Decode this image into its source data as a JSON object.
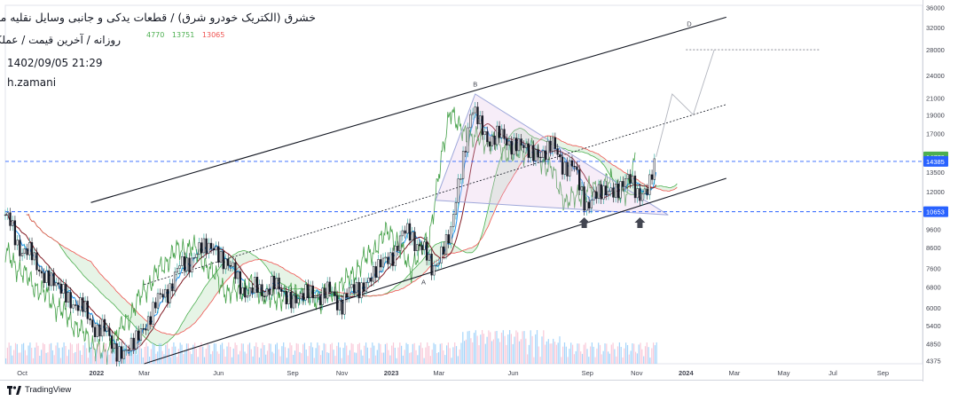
{
  "header": {
    "title": "خشرق (الکتریک خودرو شرق) / قطعات یدکی و جانبی وسایل نقلیه موتوری",
    "subtitle": "روزانه / آخرین قیمت / عملکردی",
    "ohlc": [
      "4770",
      "13751",
      "13065"
    ],
    "datetime": "1402/09/05 21:29",
    "author": "h.zamani"
  },
  "brand": {
    "name": "TradingView",
    "icon": "tradingview-logo-icon"
  },
  "colors": {
    "price_line": "#2962ff",
    "trend_line": "#131722",
    "fib_fill": "#e1bee7",
    "fib_stroke": "#9fa8da",
    "cloud_green": "#4caf50",
    "cloud_red": "#ef5350",
    "conversion_line": "#2196f3",
    "base_line": "#801922",
    "lagging_line": "#43a047",
    "volume": "#90caf9",
    "badge_price": "#4caf50",
    "badge_level": "#2962ff"
  },
  "chart_data": {
    "type": "line",
    "yscale": "log",
    "ylim": [
      4300,
      36500
    ],
    "y_ticks": [
      36000,
      32000,
      28000,
      24000,
      21000,
      19000,
      17000,
      14770,
      14385,
      13500,
      12000,
      10653,
      9600,
      8600,
      7600,
      6800,
      6000,
      5400,
      4850,
      4375
    ],
    "x_ticks": [
      "Oct",
      "2022",
      "Mar",
      "Jun",
      "Sep",
      "Nov",
      "2023",
      "Mar",
      "Jun",
      "Sep",
      "Nov",
      "2024",
      "Mar",
      "May",
      "Jul",
      "Sep"
    ],
    "x_domain": [
      "2021-09-10",
      "2024-10-20"
    ],
    "x_tick_dates": [
      "2021-10-01",
      "2022-01-01",
      "2022-03-01",
      "2022-06-01",
      "2022-09-01",
      "2022-11-01",
      "2023-01-01",
      "2023-03-01",
      "2023-06-01",
      "2023-09-01",
      "2023-11-01",
      "2024-01-01",
      "2024-03-01",
      "2024-05-01",
      "2024-07-01",
      "2024-09-01"
    ],
    "series": [
      {
        "type": "candles_close",
        "x": [
          "2021-09-10",
          "2021-10-01",
          "2021-11-01",
          "2021-12-01",
          "2022-01-05",
          "2022-02-05",
          "2022-03-01",
          "2022-04-01",
          "2022-05-01",
          "2022-05-25",
          "2022-06-15",
          "2022-07-10",
          "2022-08-05",
          "2022-09-01",
          "2022-10-01",
          "2022-11-01",
          "2022-12-01",
          "2023-01-01",
          "2023-01-25",
          "2023-02-20",
          "2023-03-15",
          "2023-04-10",
          "2023-04-20",
          "2023-05-10",
          "2023-06-01",
          "2023-06-25",
          "2023-07-20",
          "2023-08-15",
          "2023-09-01",
          "2023-09-20",
          "2023-10-10",
          "2023-10-25",
          "2023-11-15",
          "2023-11-25"
        ],
        "values": [
          10200,
          8600,
          7200,
          6300,
          5300,
          4500,
          5400,
          6900,
          8300,
          8700,
          7600,
          6500,
          6900,
          6300,
          6600,
          6300,
          7000,
          8300,
          9600,
          7600,
          9200,
          20000,
          17500,
          16500,
          16200,
          15000,
          15500,
          13500,
          11200,
          12000,
          12300,
          12800,
          11600,
          14770
        ]
      },
      {
        "type": "projection",
        "x": [
          "2023-11-25",
          "2023-12-15",
          "2024-01-10",
          "2024-02-05"
        ],
        "values": [
          14770,
          21500,
          19000,
          28000
        ]
      }
    ],
    "trend_lines": [
      {
        "from": [
          "2021-12-25",
          11250
        ],
        "to": [
          "2024-02-20",
          34000
        ]
      },
      {
        "from": [
          "2022-03-01",
          4300
        ],
        "to": [
          "2024-02-20",
          13000
        ]
      },
      {
        "from": [
          "2022-03-01",
          6900
        ],
        "to": [
          "2024-02-20",
          20200
        ]
      }
    ],
    "horizontal_levels": [
      10653,
      14385
    ],
    "target_level": {
      "value": 28000,
      "from": "2024-01-01",
      "to": "2024-06-15"
    },
    "labels": [
      {
        "text": "A",
        "x": "2023-02-10",
        "y": 6900
      },
      {
        "text": "B",
        "x": "2023-04-15",
        "y": 22500
      },
      {
        "text": "D",
        "x": "2024-01-05",
        "y": 32200
      }
    ],
    "arrows": [
      {
        "x": "2023-08-28",
        "y": 10300
      },
      {
        "x": "2023-11-05",
        "y": 10300
      }
    ],
    "price_badges": [
      {
        "label": "14770",
        "value": 14770,
        "color": "badge_price"
      },
      {
        "label": "14385",
        "value": 14385,
        "color": "badge_level"
      },
      {
        "label": "10653",
        "value": 10653,
        "color": "badge_level"
      }
    ]
  }
}
